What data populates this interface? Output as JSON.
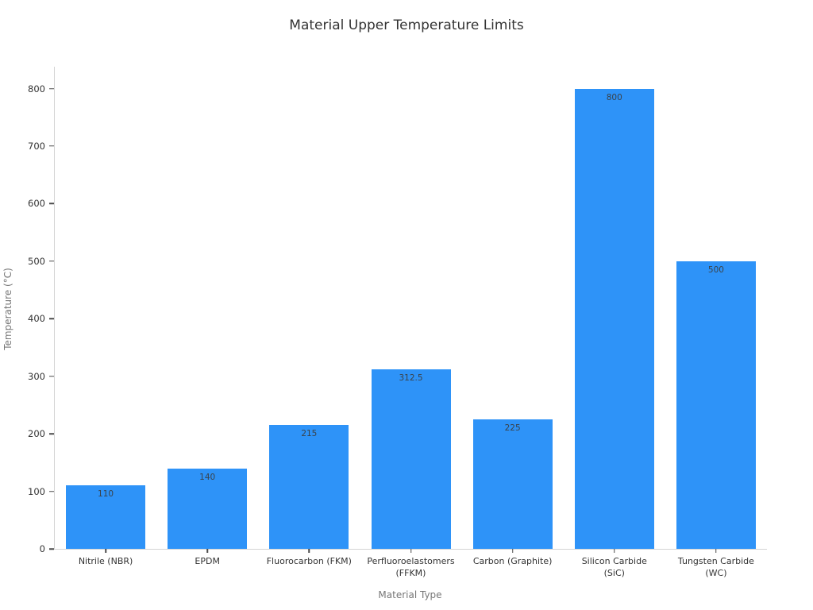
{
  "chart_data": {
    "type": "bar",
    "title": "Material Upper Temperature Limits",
    "xlabel": "Material Type",
    "ylabel": "Temperature (°C)",
    "categories": [
      "Nitrile (NBR)",
      "EPDM",
      "Fluorocarbon (FKM)",
      "Perfluoroelastomers (FFKM)",
      "Carbon (Graphite)",
      "Silicon Carbide (SiC)",
      "Tungsten Carbide (WC)"
    ],
    "category_display_lines": [
      [
        "Nitrile (NBR)"
      ],
      [
        "EPDM"
      ],
      [
        "Fluorocarbon (FKM)"
      ],
      [
        "Perfluoroelastomers",
        "(FFKM)"
      ],
      [
        "Carbon (Graphite)"
      ],
      [
        "Silicon Carbide",
        "(SiC)"
      ],
      [
        "Tungsten Carbide",
        "(WC)"
      ]
    ],
    "values": [
      110,
      140,
      215,
      312.5,
      225,
      800,
      500
    ],
    "value_labels": [
      "110",
      "140",
      "215",
      "312.5",
      "225",
      "800",
      "500"
    ],
    "yticks": [
      0,
      100,
      200,
      300,
      400,
      500,
      600,
      700,
      800
    ],
    "ylim": [
      0,
      838
    ],
    "grid": false,
    "legend": null,
    "bar_color": "#2e93f8",
    "value_label_color": "#3a434b",
    "axis_line_color": "#d4d4d4",
    "tick_mark_color": "#4a4a4a",
    "title_color": "#333333",
    "axis_title_color": "#777777"
  }
}
